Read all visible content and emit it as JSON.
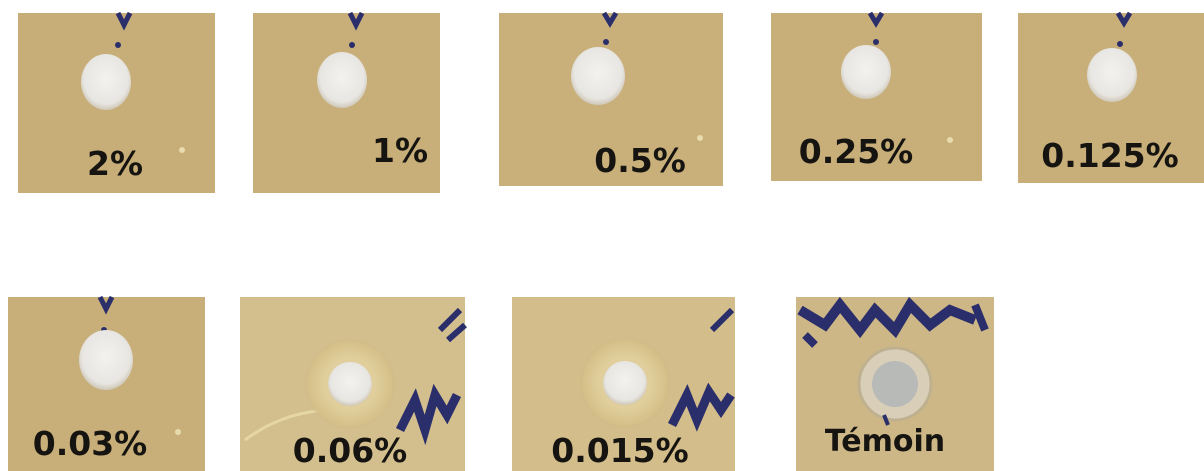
{
  "panels": [
    {
      "label": "2%"
    },
    {
      "label": "1%"
    },
    {
      "label": "0.5%"
    },
    {
      "label": "0.25%"
    },
    {
      "label": "0.125%"
    },
    {
      "label": "0.03%"
    },
    {
      "label": "0.06%"
    },
    {
      "label": "0.015%"
    },
    {
      "label": "Témoin"
    }
  ]
}
